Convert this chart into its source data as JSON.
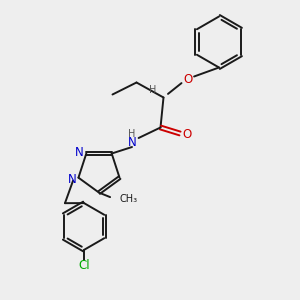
{
  "background_color": "#eeeeee",
  "bond_color": "#1a1a1a",
  "nitrogen_color": "#0000cc",
  "oxygen_color": "#cc0000",
  "chlorine_color": "#00aa00",
  "hydrogen_color": "#555555",
  "figsize": [
    3.0,
    3.0
  ],
  "dpi": 100,
  "xlim": [
    0,
    10
  ],
  "ylim": [
    0,
    10
  ]
}
